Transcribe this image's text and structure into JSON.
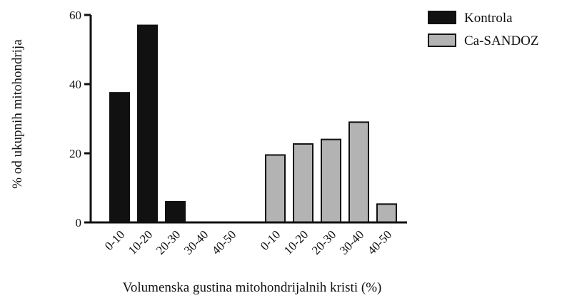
{
  "chart_data": {
    "type": "bar",
    "ylabel": "% od ukupnih mitohondrija",
    "xlabel": "Volumenska gustina mitohondrijalnih kristi (%)",
    "ylim": [
      0,
      60
    ],
    "yticks": [
      0,
      20,
      40,
      60
    ],
    "grid": false,
    "legend_position": "top-right",
    "series": [
      {
        "name": "Kontrola",
        "color": "#111111",
        "categories": [
          "0-10",
          "10-20",
          "20-30",
          "30-40",
          "40-50"
        ],
        "values": [
          37.5,
          57,
          6,
          0,
          0
        ]
      },
      {
        "name": "Ca-SANDOZ",
        "color": "#b3b3b3",
        "categories": [
          "0-10",
          "10-20",
          "20-30",
          "30-40",
          "40-50"
        ],
        "values": [
          19.5,
          22.7,
          24,
          29,
          5.3
        ]
      }
    ]
  }
}
